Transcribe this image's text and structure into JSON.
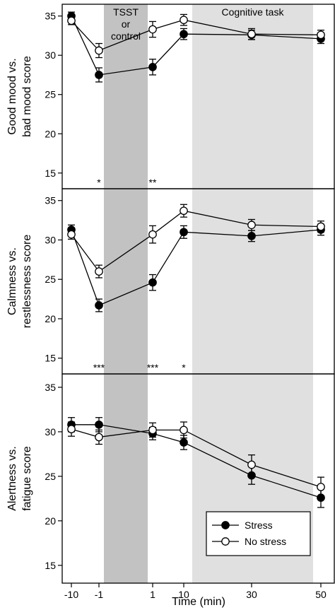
{
  "chart_data": {
    "type": "line",
    "xlabel": "Time (min)",
    "x_tick_labels": [
      "-10",
      "-1",
      "1",
      "10",
      "30",
      "50"
    ],
    "series_names": [
      "Stress",
      "No stress"
    ],
    "legend_position": "bottom-right of bottom panel",
    "grid": false,
    "shaded_regions": [
      {
        "label": "TSST or control",
        "label_lines": [
          "TSST",
          "or",
          "control"
        ],
        "from_tick": "-1",
        "to_tick": "1",
        "color": "#c2c2c2"
      },
      {
        "label": "Cognitive task",
        "label_lines": [
          "Cognitive task"
        ],
        "from_tick": "10",
        "to_tick": "50",
        "color": "#e0e0e0"
      }
    ],
    "panels": [
      {
        "ylabel": [
          "Good mood vs.",
          "bad mood score"
        ],
        "ylim": [
          13,
          36.5
        ],
        "yticks": [
          15,
          20,
          25,
          30,
          35
        ],
        "series": [
          {
            "name": "Stress",
            "x": [
              "-10",
              "-1",
              "1",
              "10",
              "30",
              "50"
            ],
            "values": [
              35.0,
              27.5,
              28.5,
              32.7,
              32.6,
              32.1
            ],
            "errors": [
              0.5,
              0.9,
              1.0,
              0.7,
              0.6,
              0.6
            ]
          },
          {
            "name": "No stress",
            "x": [
              "-10",
              "-1",
              "1",
              "10",
              "30",
              "50"
            ],
            "values": [
              34.4,
              30.6,
              33.3,
              34.5,
              32.7,
              32.6
            ],
            "errors": [
              0.5,
              0.9,
              1.0,
              0.7,
              0.7,
              0.6
            ]
          }
        ],
        "significance": [
          {
            "x": "-1",
            "label": "*"
          },
          {
            "x": "1",
            "label": "**"
          }
        ]
      },
      {
        "ylabel": [
          "Calmness vs.",
          "restlessness score"
        ],
        "ylim": [
          13,
          36.5
        ],
        "yticks": [
          15,
          20,
          25,
          30,
          35
        ],
        "series": [
          {
            "name": "Stress",
            "x": [
              "-10",
              "-1",
              "1",
              "10",
              "30",
              "50"
            ],
            "values": [
              31.3,
              21.7,
              24.6,
              31.0,
              30.5,
              31.3
            ],
            "errors": [
              0.6,
              0.8,
              1.0,
              0.8,
              0.7,
              0.7
            ]
          },
          {
            "name": "No stress",
            "x": [
              "-10",
              "-1",
              "1",
              "10",
              "30",
              "50"
            ],
            "values": [
              30.7,
              26.0,
              30.7,
              33.7,
              31.9,
              31.7
            ],
            "errors": [
              0.6,
              0.8,
              1.1,
              0.8,
              0.7,
              0.7
            ]
          }
        ],
        "significance": [
          {
            "x": "-1",
            "label": "***"
          },
          {
            "x": "1",
            "label": "***"
          },
          {
            "x": "10",
            "label": "*"
          }
        ]
      },
      {
        "ylabel": [
          "Alertness vs.",
          "fatigue score"
        ],
        "ylim": [
          13,
          36.5
        ],
        "yticks": [
          15,
          20,
          25,
          30,
          35
        ],
        "series": [
          {
            "name": "Stress",
            "x": [
              "-10",
              "-1",
              "1",
              "10",
              "30",
              "50"
            ],
            "values": [
              30.8,
              30.8,
              29.8,
              28.8,
              25.1,
              22.6
            ],
            "errors": [
              0.8,
              0.8,
              0.7,
              0.8,
              1.0,
              1.1
            ]
          },
          {
            "name": "No stress",
            "x": [
              "-10",
              "-1",
              "1",
              "10",
              "30",
              "50"
            ],
            "values": [
              30.3,
              29.4,
              30.2,
              30.2,
              26.3,
              23.8
            ],
            "errors": [
              0.8,
              0.8,
              0.8,
              0.9,
              1.1,
              1.1
            ]
          }
        ],
        "significance": []
      }
    ]
  }
}
